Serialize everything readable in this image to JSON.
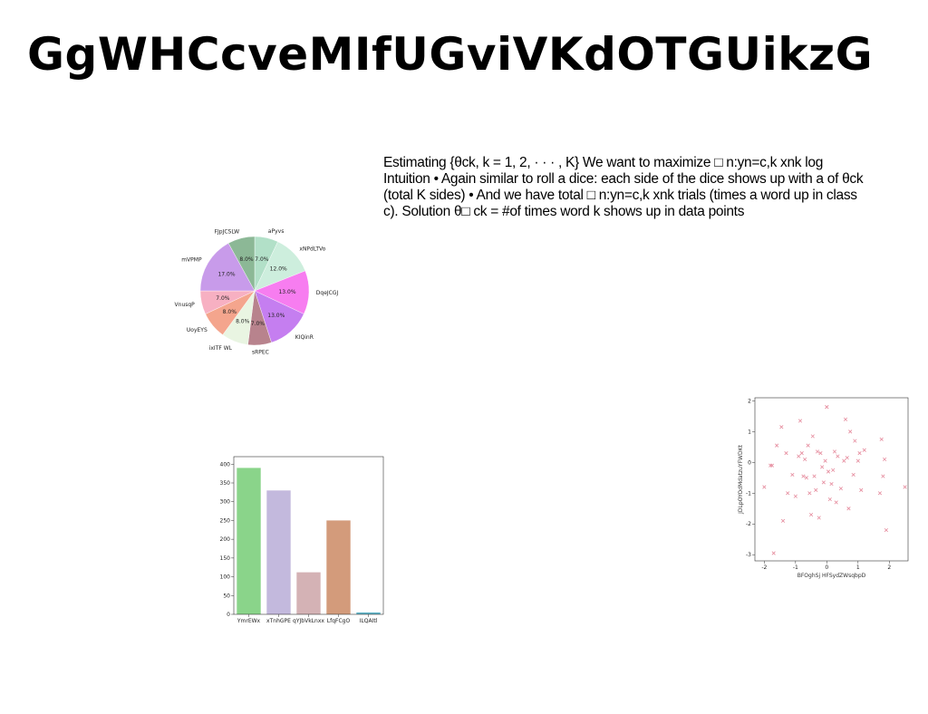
{
  "slide": {
    "title": "GgWHCcveMIfUGviVKdOTGUikzG",
    "body": "Estimating {θck, k = 1, 2, · · · , K} We want to maximize □ n:yn=c,k xnk log Intuition • Again similar to roll a dice: each side of the dice shows up with a of θck (total K sides) • And we have total □ n:yn=c,k xnk trials (times a word up in class c). Solution θ□ ck = #of times word k shows up in data points"
  },
  "chart_data": [
    {
      "type": "pie",
      "categories": [
        "aPyvs",
        "xNPdLTVo",
        "DqeJCGJ",
        "KIQinR",
        "sRPEC",
        "ixITF WL",
        "UoyEYS",
        "VnusqP",
        "mVPMP",
        "FJpJCSLW"
      ],
      "values": [
        7.0,
        12.0,
        13.0,
        13.0,
        7.0,
        8.0,
        8.0,
        7.0,
        17.0,
        8.0
      ],
      "labels": [
        "7.0%",
        "12.0%",
        "13.0%",
        "13.0%",
        "7.0%",
        "8.0%",
        "8.0%",
        "7.0%",
        "17.0%",
        "8.0%"
      ],
      "colors": [
        "#b2e0c8",
        "#cdeedd",
        "#f77df0",
        "#c57ef0",
        "#b8838d",
        "#e9f5e2",
        "#f4a58d",
        "#f7b0c2",
        "#c89bea",
        "#8cb896"
      ]
    },
    {
      "type": "bar",
      "categories": [
        "YmrEWx",
        "xTnhGPE",
        "qYJbVkLnxx",
        "LfqFCgO",
        "ILQAItl"
      ],
      "values": [
        390,
        330,
        112,
        250,
        5
      ],
      "colors": [
        "#8ad48a",
        "#c3b9dd",
        "#d4b2b5",
        "#d39b7b",
        "#5fb4c7"
      ],
      "ylim": [
        0,
        420
      ],
      "yticks": [
        0,
        50,
        100,
        150,
        200,
        250,
        300,
        350,
        400
      ]
    },
    {
      "type": "scatter",
      "xlabel": "BFOghSj HFSydZWsqbpD",
      "ylabel": "JDLpOYOdMdatzuYFWDKt",
      "xlim": [
        -2.3,
        2.6
      ],
      "ylim": [
        -3.2,
        2.1
      ],
      "xticks": [
        -2,
        -1,
        0,
        1,
        2
      ],
      "yticks": [
        -3,
        -2,
        -1,
        0,
        1,
        2
      ],
      "marker_color": "#e58a9c",
      "x": [
        -2.0,
        -1.8,
        -1.7,
        -1.6,
        -1.45,
        -1.4,
        -1.3,
        -1.25,
        -1.1,
        -1.0,
        -0.9,
        -0.85,
        -0.8,
        -0.75,
        -0.7,
        -0.65,
        -0.6,
        -0.55,
        -0.5,
        -0.45,
        -0.4,
        -0.35,
        -0.3,
        -0.25,
        -0.2,
        -0.15,
        -0.1,
        -0.05,
        0.0,
        0.05,
        0.1,
        0.15,
        0.2,
        0.25,
        0.3,
        0.35,
        0.45,
        0.55,
        0.6,
        0.65,
        0.7,
        0.75,
        0.85,
        0.9,
        1.0,
        1.05,
        1.1,
        1.2,
        1.7,
        1.75,
        1.8,
        1.85,
        1.9,
        2.5,
        -1.75,
        0.0
      ],
      "y": [
        -0.8,
        -0.1,
        -2.95,
        0.55,
        1.15,
        -1.9,
        0.3,
        -1.0,
        -0.4,
        -1.1,
        0.2,
        1.35,
        0.3,
        -0.45,
        0.1,
        -0.5,
        0.55,
        -1.0,
        -1.7,
        0.85,
        -0.45,
        -0.9,
        0.35,
        -1.8,
        0.3,
        -0.15,
        -0.65,
        0.05,
        1.8,
        -0.3,
        -1.2,
        -0.7,
        -0.25,
        0.35,
        -1.3,
        0.2,
        -0.85,
        0.05,
        1.4,
        0.15,
        -1.5,
        1.0,
        -0.4,
        0.7,
        0.05,
        0.3,
        -0.9,
        0.4,
        -1.0,
        0.75,
        -0.45,
        0.1,
        -2.2,
        -0.8,
        -0.1,
        1.8
      ]
    }
  ]
}
